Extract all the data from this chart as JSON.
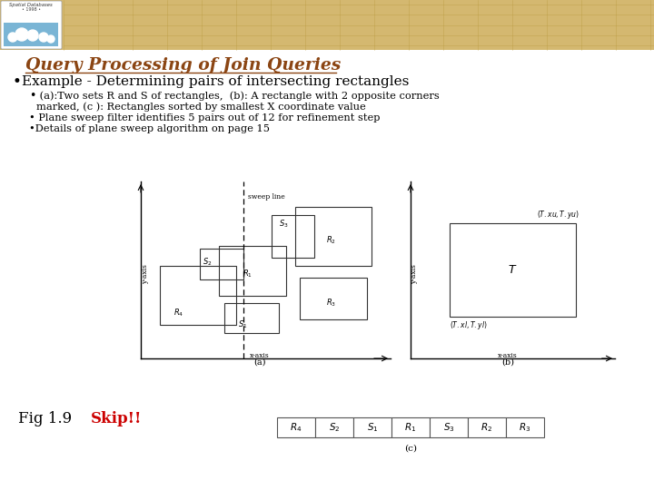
{
  "title": "Query Processing of Join Queries",
  "bullet1": "Example - Determining pairs of intersecting rectangles",
  "bullet2a": " (a):Two sets R and S of rectangles,  (b): A rectangle with 2 opposite corners",
  "bullet2b": "marked, (c ): Rectangles sorted by smallest X coordinate value",
  "bullet3": "• Plane sweep filter identifies 5 pairs out of 12 for refinement step",
  "bullet4": "•Details of plane sweep algorithm on page 15",
  "fig_label": "Fig 1.9",
  "skip_label": "Skip!!",
  "skip_color": "#cc0000",
  "bg_color": "#ffffff",
  "header_bg": "#d4b870",
  "title_color": "#8B4513",
  "text_color": "#000000",
  "table_labels": [
    "$R_4$",
    "$S_2$",
    "$S_1$",
    "$R_1$",
    "$S_3$",
    "$R_2$",
    "$R_3$"
  ]
}
